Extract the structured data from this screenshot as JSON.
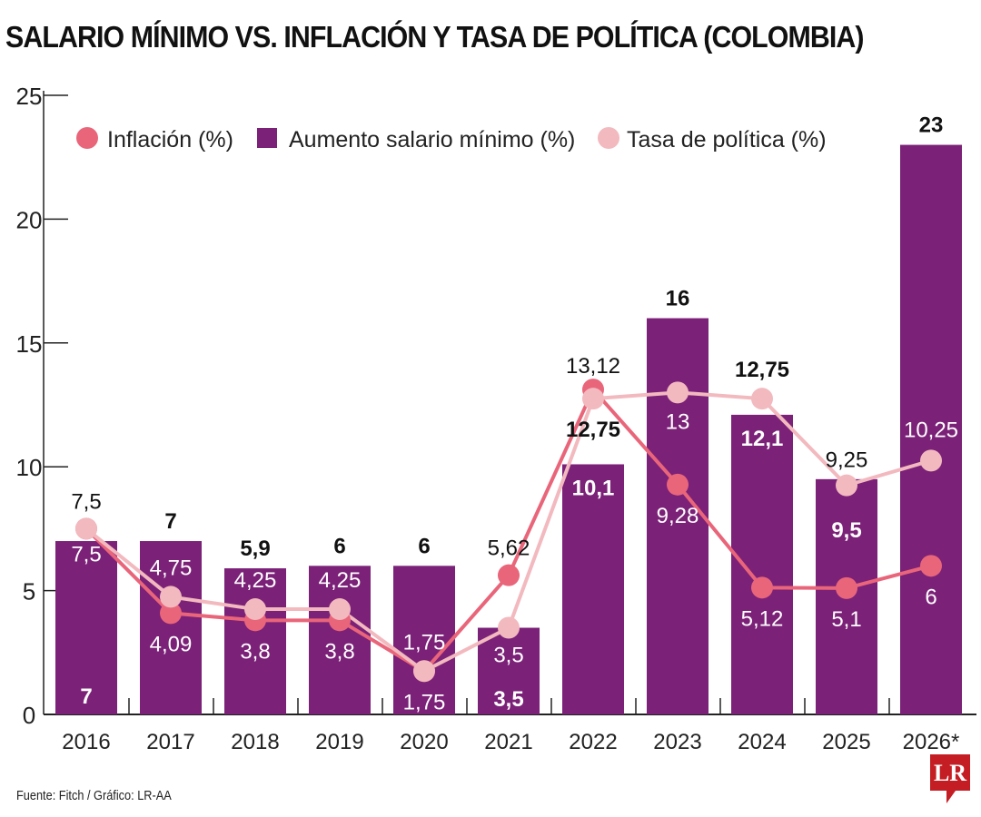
{
  "title": "SALARIO MÍNIMO VS. INFLACIÓN Y TASA DE POLÍTICA (COLOMBIA)",
  "source": "Fuente: Fitch / Gráfico: LR-AA",
  "logo": "LR",
  "chart_data": {
    "type": "bar",
    "title": "SALARIO MÍNIMO VS. INFLACIÓN Y TASA DE POLÍTICA (COLOMBIA)",
    "categories": [
      "2016",
      "2017",
      "2018",
      "2019",
      "2020",
      "2021",
      "2022",
      "2023",
      "2024",
      "2025",
      "2026*"
    ],
    "ylim": [
      0,
      25
    ],
    "yticks": [
      "0",
      "5",
      "10",
      "15",
      "20",
      "25"
    ],
    "grid": false,
    "legend": "top",
    "series": [
      {
        "name": "Aumento salario mínimo (%)",
        "type": "bar",
        "color": "#7b2178",
        "values": [
          7,
          7,
          5.9,
          6,
          6,
          3.5,
          10.1,
          16,
          12.1,
          9.5,
          23
        ],
        "labels": [
          "7",
          "7",
          "5,9",
          "6",
          "6",
          "3,5",
          "10,1",
          "16",
          "12,1",
          "9,5",
          "23"
        ]
      },
      {
        "name": "Inflación (%)",
        "type": "line",
        "color": "#e9657a",
        "values": [
          7.5,
          4.09,
          3.8,
          3.8,
          1.75,
          5.62,
          13.12,
          9.28,
          5.12,
          5.1,
          6
        ],
        "labels": [
          "7,5",
          "4,09",
          "3,8",
          "3,8",
          "1,75",
          "5,62",
          "13,12",
          "9,28",
          "5,12",
          "5,1",
          "6"
        ]
      },
      {
        "name": "Tasa de política (%)",
        "type": "line",
        "color": "#f2b9bf",
        "values": [
          7.5,
          4.75,
          4.25,
          4.25,
          1.75,
          3.5,
          12.75,
          13,
          12.75,
          9.25,
          10.25
        ],
        "labels": [
          "7,5",
          "4,75",
          "4,25",
          "4,25",
          "1,75",
          "3,5",
          "12,75",
          "13",
          "12,75",
          "9,25",
          "10,25"
        ]
      }
    ]
  }
}
